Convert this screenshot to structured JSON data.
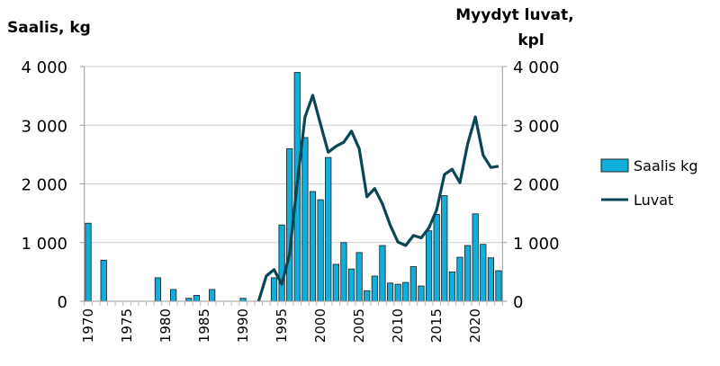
{
  "chart_data": {
    "type": "bar+line",
    "title": "",
    "left_axis_title": "Saalis, kg",
    "right_axis_title": [
      "Myydyt luvat,",
      "kpl"
    ],
    "ylim": [
      0,
      4000
    ],
    "y2lim": [
      0,
      4000
    ],
    "yticks": [
      "0",
      "1 000",
      "2 000",
      "3 000",
      "4 000"
    ],
    "xticks": [
      "1970",
      "1975",
      "1980",
      "1985",
      "1990",
      "1995",
      "2000",
      "2005",
      "2010",
      "2015",
      "2020"
    ],
    "grid": true,
    "legend_position": "right",
    "x": [
      1970,
      1971,
      1972,
      1973,
      1974,
      1975,
      1976,
      1977,
      1978,
      1979,
      1980,
      1981,
      1982,
      1983,
      1984,
      1985,
      1986,
      1987,
      1988,
      1989,
      1990,
      1991,
      1992,
      1993,
      1994,
      1995,
      1996,
      1997,
      1998,
      1999,
      2000,
      2001,
      2002,
      2003,
      2004,
      2005,
      2006,
      2007,
      2008,
      2009,
      2010,
      2011,
      2012,
      2013,
      2014,
      2015,
      2016,
      2017,
      2018,
      2019,
      2020,
      2021,
      2022,
      2023
    ],
    "series": [
      {
        "name": "Saalis kg",
        "type": "bar",
        "color": "#12AEDB",
        "values": [
          1330,
          0,
          700,
          0,
          0,
          0,
          0,
          0,
          0,
          400,
          0,
          200,
          0,
          50,
          100,
          0,
          200,
          0,
          0,
          0,
          50,
          0,
          0,
          0,
          400,
          1300,
          2600,
          3900,
          2790,
          1870,
          1730,
          2450,
          630,
          1000,
          550,
          830,
          180,
          430,
          950,
          310,
          290,
          320,
          590,
          260,
          1200,
          1480,
          1800,
          500,
          750,
          950,
          1490,
          970,
          740,
          520
        ]
      },
      {
        "name": "Luvat",
        "type": "line",
        "color": "#0B4654",
        "values": [
          null,
          null,
          null,
          null,
          null,
          null,
          null,
          null,
          null,
          null,
          null,
          null,
          null,
          null,
          null,
          null,
          null,
          null,
          null,
          null,
          null,
          null,
          0,
          430,
          540,
          290,
          800,
          2020,
          3140,
          3510,
          3020,
          2540,
          2640,
          2710,
          2900,
          2600,
          1780,
          1920,
          1660,
          1300,
          1010,
          950,
          1120,
          1080,
          1250,
          1560,
          2160,
          2250,
          2020,
          2680,
          3140,
          2490,
          2280,
          2300
        ]
      }
    ]
  }
}
